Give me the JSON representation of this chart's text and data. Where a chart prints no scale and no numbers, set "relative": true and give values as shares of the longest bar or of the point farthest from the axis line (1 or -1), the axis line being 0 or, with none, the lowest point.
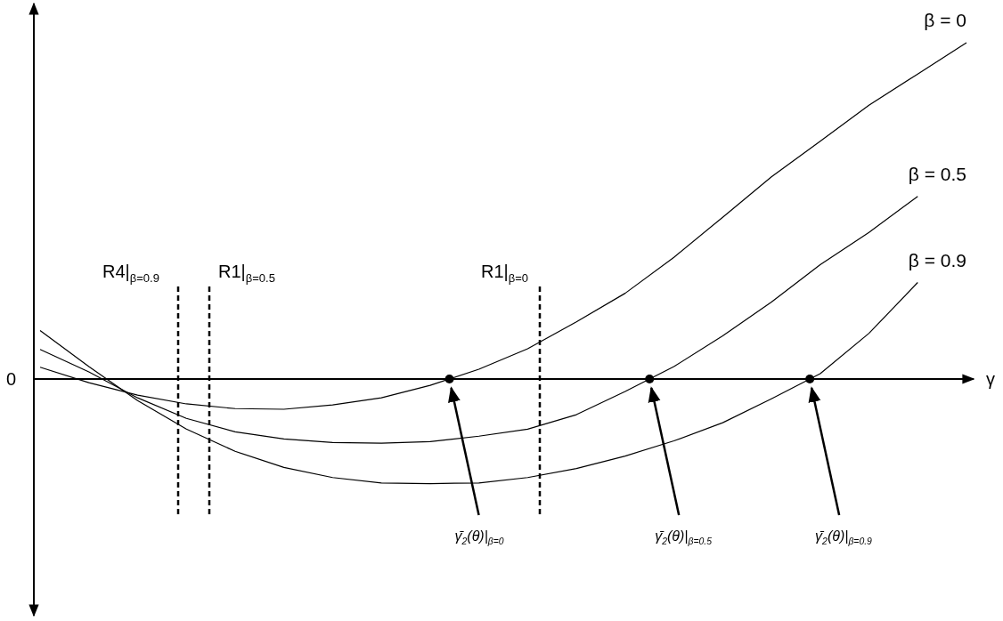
{
  "chart_data": {
    "type": "line",
    "relative": true,
    "xlabel": "γ",
    "line_style": "solid",
    "categories": [
      null,
      null,
      null,
      null,
      null,
      null,
      null,
      null,
      null,
      null,
      null,
      null,
      null,
      null,
      null,
      null,
      null,
      null,
      null,
      null
    ],
    "series": [
      {
        "name": "β = 0",
        "color": "#000000",
        "values": [
          0.035,
          -0.011,
          -0.048,
          -0.074,
          -0.088,
          -0.09,
          -0.077,
          -0.056,
          -0.019,
          0.029,
          0.09,
          0.17,
          0.255,
          0.362,
          0.481,
          0.601,
          0.707,
          0.814,
          0.907,
          1
        ]
      },
      {
        "name": "β = 0.5",
        "color": "#000000",
        "values": [
          0.088,
          0.021,
          -0.056,
          -0.117,
          -0.157,
          -0.178,
          -0.189,
          -0.191,
          -0.186,
          -0.17,
          -0.149,
          -0.106,
          -0.037,
          0.037,
          0.128,
          0.229,
          0.34,
          0.436,
          0.543,
          null
        ]
      },
      {
        "name": "β = 0.9",
        "color": "#000000",
        "values": [
          0.144,
          0.037,
          -0.064,
          -0.149,
          -0.215,
          -0.263,
          -0.293,
          -0.309,
          -0.311,
          -0.309,
          -0.293,
          -0.266,
          -0.229,
          -0.184,
          -0.13,
          -0.059,
          0.016,
          0.136,
          0.287,
          null
        ]
      }
    ],
    "annotations": [
      "0",
      "R4|$_{β=0.9}$",
      "R1|$_{β=0.5}$",
      "R1|$_{β=0}$",
      "γ̄$_{2}$(θ)|$_{β=0}$",
      "γ̄$_{2}$(θ)|$_{β=0.5}$",
      "γ̄$_{2}$(θ)|$_{β=0.9}$"
    ]
  }
}
